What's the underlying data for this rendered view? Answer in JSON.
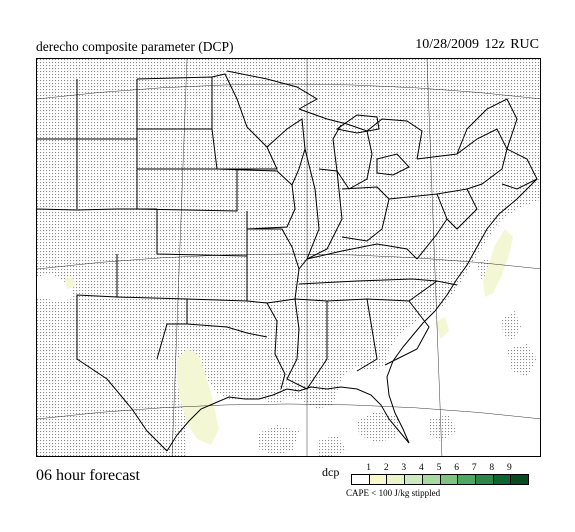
{
  "header": {
    "title": "derecho composite parameter (DCP)",
    "datetime": "10/28/2009  12z  RUC"
  },
  "footer": {
    "forecast_label": "06 hour forecast"
  },
  "legend": {
    "label": "dcp",
    "ticks": [
      "1",
      "2",
      "3",
      "4",
      "5",
      "6",
      "7",
      "8",
      "9"
    ],
    "colors": [
      "#ffffff",
      "#fafac8",
      "#e9f5c4",
      "#cdeabd",
      "#a8d99e",
      "#7ec47f",
      "#4ea862",
      "#2a8748",
      "#0d6532",
      "#064b22"
    ],
    "stipple_note": "CAPE < 100 J/kg stippled"
  },
  "map": {
    "stipple_color": "#9a9a9a",
    "low_dcp_color": "#f4f7d4"
  }
}
